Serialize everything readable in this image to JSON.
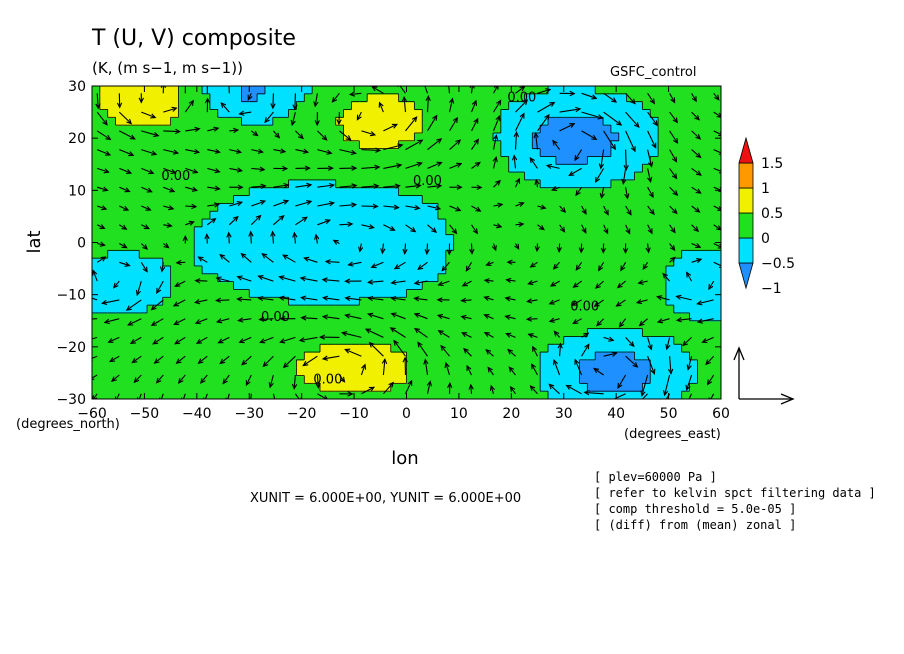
{
  "chart_data": {
    "type": "heatmap",
    "title": "T (U, V) composite",
    "subtitle": "(K, (m s−1, m s−1))",
    "model_label": "GSFC_control",
    "xlabel": "lon",
    "ylabel": "lat",
    "x_unit_label": "(degrees_east)",
    "y_unit_label": "(degrees_north)",
    "xlim": [
      -60,
      60
    ],
    "ylim": [
      -30,
      30
    ],
    "x_ticks": [
      "−60",
      "−50",
      "−40",
      "−30",
      "−20",
      "−10",
      "0",
      "10",
      "20",
      "30",
      "40",
      "50",
      "60"
    ],
    "y_ticks": [
      "30",
      "20",
      "10",
      "0",
      "−10",
      "−20",
      "−30"
    ],
    "x_tick_values": [
      -60,
      -50,
      -40,
      -30,
      -20,
      -10,
      0,
      10,
      20,
      30,
      40,
      50,
      60
    ],
    "y_tick_values": [
      30,
      20,
      10,
      0,
      -10,
      -20,
      -30
    ],
    "colorbar": {
      "labels": [
        "1.5",
        "1",
        "0.5",
        "0",
        "−0.5",
        "−1"
      ],
      "label_values": [
        1.5,
        1,
        0.5,
        0,
        -0.5,
        -1
      ],
      "colors": [
        "#1e90ff",
        "#00e0ff",
        "#20e020",
        "#f0f000",
        "#ff9900",
        "#ee1111"
      ]
    },
    "contour_labels": [
      {
        "text": "0.00",
        "lon": -44,
        "lat": 12
      },
      {
        "text": "0.00",
        "lon": 4,
        "lat": 11
      },
      {
        "text": "0.00",
        "lon": 22,
        "lat": 27
      },
      {
        "text": "0.00",
        "lon": -25,
        "lat": -15
      },
      {
        "text": "0.00",
        "lon": 34,
        "lat": -13
      },
      {
        "text": "0.00",
        "lon": -15,
        "lat": -27
      }
    ],
    "field_anomalies": [
      {
        "lon": -50,
        "lat": 28,
        "amp": 0.6,
        "rx": 12,
        "ry": 8
      },
      {
        "lon": -5,
        "lat": 23,
        "amp": 0.6,
        "rx": 11,
        "ry": 7
      },
      {
        "lon": 32,
        "lat": 20,
        "amp": -1.0,
        "rx": 12,
        "ry": 7
      },
      {
        "lon": -30,
        "lat": 29,
        "amp": -0.75,
        "rx": 10,
        "ry": 5
      },
      {
        "lon": -15,
        "lat": 0,
        "amp": -0.6,
        "rx": 22,
        "ry": 10
      },
      {
        "lon": -55,
        "lat": -8,
        "amp": -0.55,
        "rx": 8,
        "ry": 5
      },
      {
        "lon": -10,
        "lat": -24,
        "amp": 0.7,
        "rx": 13,
        "ry": 6
      },
      {
        "lon": 40,
        "lat": -25,
        "amp": -1.0,
        "rx": 11,
        "ry": 6
      },
      {
        "lon": 58,
        "lat": -8,
        "amp": -0.55,
        "rx": 8,
        "ry": 6
      },
      {
        "lon": 15,
        "lat": 2,
        "amp": 0.15,
        "rx": 6,
        "ry": 20
      }
    ],
    "vector_reference": {
      "xunit": 6.0,
      "yunit": 6.0
    },
    "xunit_label": "XUNIT = 6.000E+00, YUNIT = 6.000E+00",
    "notes": [
      "[ plev=60000 Pa ]",
      "[ refer to kelvin spct filtering data ]",
      "[ comp threshold = 5.0e-05 ]",
      "[ (diff) from (mean) zonal ]"
    ]
  }
}
